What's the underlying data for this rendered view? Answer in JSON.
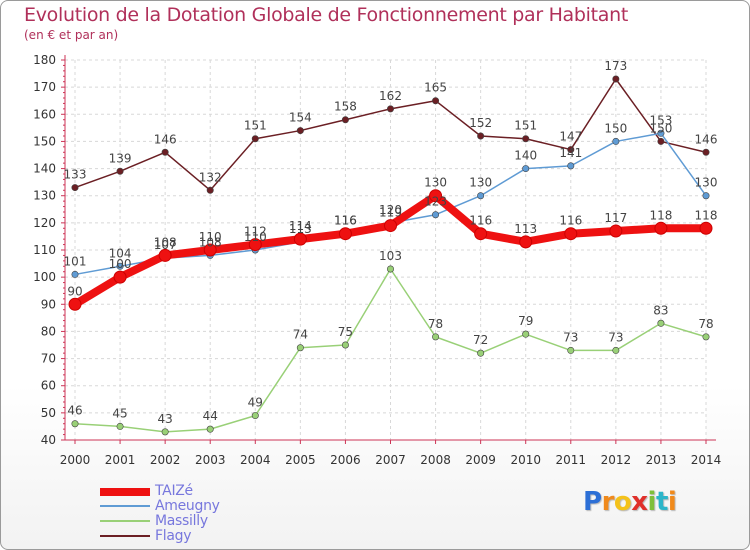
{
  "chart_data": {
    "type": "line",
    "title": "Evolution de la Dotation Globale de Fonctionnement par Habitant",
    "subtitle": "(en € et par an)",
    "x": [
      "2000",
      "2001",
      "2002",
      "2003",
      "2004",
      "2005",
      "2006",
      "2007",
      "2008",
      "2009",
      "2010",
      "2011",
      "2012",
      "2013",
      "2014"
    ],
    "yticks": [
      "40",
      "50",
      "60",
      "70",
      "80",
      "90",
      "100",
      "110",
      "120",
      "130",
      "140",
      "150",
      "160",
      "170",
      "180"
    ],
    "ylim": [
      40,
      180
    ],
    "grid": true,
    "legend_position": "bottom-left",
    "series": [
      {
        "name": "Flagy",
        "color": "#6b1f24",
        "values": [
          133,
          139,
          146,
          132,
          151,
          154,
          158,
          162,
          165,
          152,
          151,
          147,
          173,
          150,
          146
        ],
        "labels": [
          "133",
          "139",
          "146",
          "132",
          "151",
          "154",
          "158",
          "162",
          "165",
          "152",
          "151",
          "147",
          "173",
          "150",
          "146"
        ]
      },
      {
        "name": "Massilly",
        "color": "#99d077",
        "values": [
          46,
          45,
          43,
          44,
          49,
          74,
          75,
          103,
          78,
          72,
          79,
          73,
          73,
          83,
          78
        ],
        "labels": [
          "46",
          "45",
          "43",
          "44",
          "49",
          "74",
          "75",
          "103",
          "78",
          "72",
          "79",
          "73",
          "73",
          "83",
          "78"
        ]
      },
      {
        "name": "Ameugny",
        "color": "#5f9bd4",
        "values": [
          101,
          104,
          107,
          108,
          110,
          113,
          116,
          120,
          123,
          130,
          140,
          141,
          150,
          153,
          130
        ],
        "labels": [
          "101",
          "104",
          "107",
          "108",
          "110",
          "113",
          "116",
          "120",
          "123",
          "130",
          "140",
          "141",
          "150",
          "153",
          "130"
        ]
      },
      {
        "name": "TAIZé",
        "color": "#ee1111",
        "values": [
          90,
          100,
          108,
          110,
          112,
          114,
          116,
          119,
          130,
          116,
          113,
          116,
          117,
          118,
          118
        ],
        "labels": [
          "90",
          "100",
          "108",
          "110",
          "112",
          "114",
          "116",
          "119",
          "130",
          "116",
          "113",
          "116",
          "117",
          "118",
          "118"
        ]
      }
    ]
  },
  "legend": [
    "TAIZé",
    "Ameugny",
    "Massilly",
    "Flagy"
  ],
  "logo": {
    "p": "P",
    "r": "r",
    "o": "o",
    "x": "x",
    "i1": "i",
    "t": "t",
    "i2": "i"
  }
}
